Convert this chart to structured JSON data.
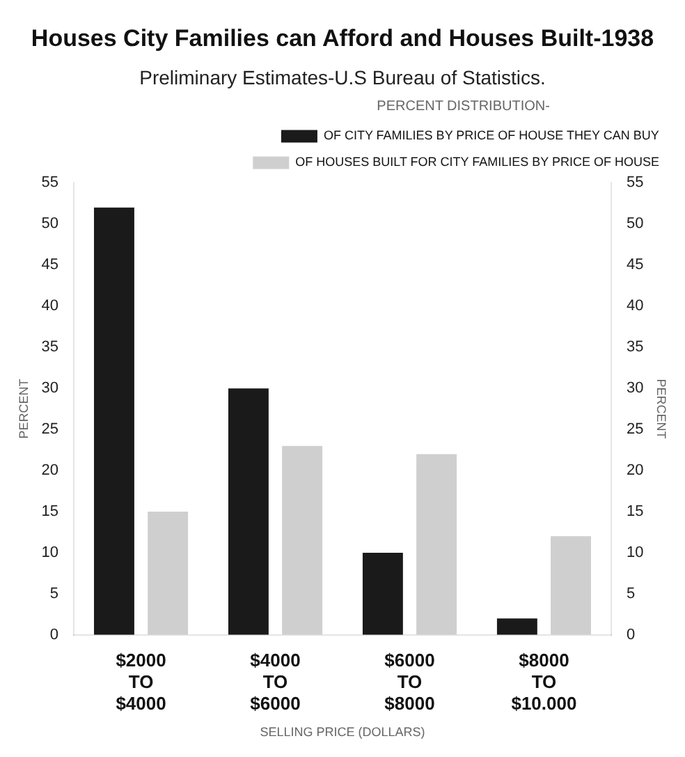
{
  "chart_data": {
    "type": "bar",
    "title": "Houses City Families can Afford and Houses Built-1938",
    "subtitle": "Preliminary Estimates-U.S Bureau of Statistics.",
    "xlabel": "SELLING PRICE (DOLLARS)",
    "ylabel": "PERCENT",
    "y2label": "PERCENT",
    "legend_title": "PERCENT DISTRIBUTION-",
    "categories": [
      "$2000\nTO\n$4000",
      "$4000\nTO\n$6000",
      "$6000\nTO\n$8000",
      "$8000\nTO\n$10.000"
    ],
    "series": [
      {
        "name": "OF CITY FAMILIES BY PRICE OF HOUSE THEY CAN BUY",
        "color": "#1a1a1a",
        "values": [
          52,
          30,
          10,
          2
        ]
      },
      {
        "name": "OF HOUSES BUILT FOR CITY FAMILIES BY PRICE OF HOUSE",
        "color": "#cfcfcf",
        "values": [
          15,
          23,
          22,
          12
        ]
      }
    ],
    "ylim": [
      0,
      55
    ],
    "yticks": [
      0,
      5,
      10,
      15,
      20,
      25,
      30,
      35,
      40,
      45,
      50,
      55
    ],
    "y2lim": [
      0,
      55
    ],
    "y2ticks": [
      0,
      5,
      10,
      15,
      20,
      25,
      30,
      35,
      40,
      45,
      50,
      55
    ],
    "grid": false,
    "legend": "top right"
  }
}
